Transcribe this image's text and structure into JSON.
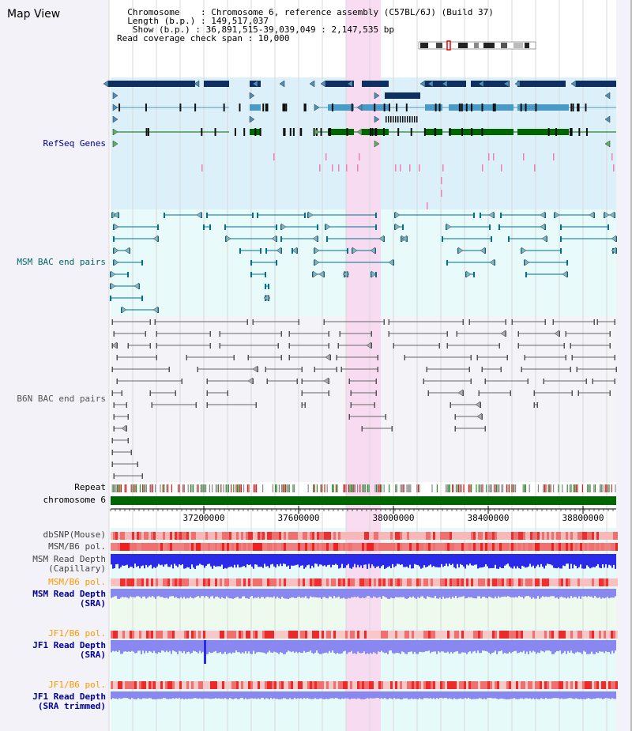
{
  "header": {
    "view_title": "Map View",
    "info_lines": [
      "  Chromosome    : Chromosome 6, reference assembly (C57BL/6J) (Build 37)",
      "  Length (b.p.) : 149,517,037",
      "   Show (b.p.) : 36,891,515-39,039,049 : 2,147,535 bp",
      "Read coverage check span : 10,000"
    ]
  },
  "tracks": {
    "refseq": {
      "label": "RefSeq Genes",
      "color": "#000099"
    },
    "msm_bac": {
      "label": "MSM BAC end pairs",
      "color": "#006666"
    },
    "b6n_bac": {
      "label": "B6N BAC end pairs",
      "color": "#555555"
    },
    "repeat": {
      "label": "Repeat",
      "color": "#000000"
    },
    "chromosome": {
      "label": "chromosome 6",
      "color": "#000000"
    },
    "axis_ticks": [
      "37200000",
      "37600000",
      "38000000",
      "38400000",
      "38800000"
    ],
    "dbsnp": {
      "label": "dbSNP(Mouse)",
      "color": "#444444"
    },
    "msm_b6_pol": {
      "label": "MSM/B6 pol.",
      "color": "#444444"
    },
    "msm_depth_cap": {
      "label": "MSM Read Depth\n(Capillary)",
      "color": "#444444"
    },
    "msm_b6_pol_sra": {
      "label": "MSM/B6 pol.",
      "color": "#ff9900"
    },
    "msm_depth_sra": {
      "label": "MSM Read Depth\n(SRA)",
      "color": "#000099"
    },
    "jf1_b6_pol": {
      "label": "JF1/B6 pol.",
      "color": "#ff9900"
    },
    "jf1_depth_sra": {
      "label": "JF1 Read Depth\n(SRA)",
      "color": "#000099"
    },
    "jf1_b6_pol_2": {
      "label": "JF1/B6 pol.",
      "color": "#ff9900"
    },
    "jf1_depth_trim": {
      "label": "JF1 Read Depth\n(SRA trimmed)",
      "color": "#000099"
    }
  },
  "colors": {
    "refseq_bg": "#dcf0fa",
    "bac_bg": "#e8fafa",
    "highlight": "#f8d8f0",
    "gene_dark": "#0f2f60",
    "gene_mid": "#4a9ac8",
    "gene_green": "#006600",
    "msm_pair": "#007090",
    "b6n_pair": "#666666",
    "chromosome_bar": "#006600",
    "depth_blue": "#2a2ae8",
    "depth_light": "#8888f0"
  }
}
